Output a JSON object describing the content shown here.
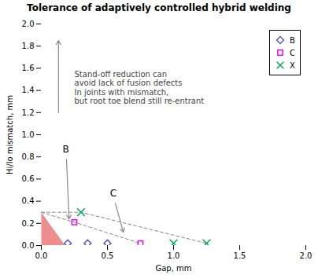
{
  "chart_data": {
    "type": "scatter",
    "title": "Tolerance of adaptively controlled hybrid welding",
    "x_label": "Gap, mm",
    "y_label": "Hi/lo mismatch, mm",
    "xlim": [
      0,
      2
    ],
    "ylim": [
      0,
      2
    ],
    "xticks": [
      {
        "value": 0,
        "label": "0.0"
      },
      0.5,
      {
        "value": 1,
        "label": "1.0"
      },
      1.5,
      {
        "value": 2,
        "label": "2.0"
      }
    ],
    "yticks": [
      {
        "value": 0,
        "label": "0.0"
      },
      0.2,
      0.4,
      0.6,
      0.8,
      {
        "value": 1.0,
        "label": "1.0"
      },
      1.2,
      1.4,
      1.6,
      1.8,
      {
        "value": 2.0,
        "label": "2.0"
      }
    ],
    "grid": false,
    "legend": "upper right",
    "series": [
      {
        "name": "B",
        "color": "#5555cc",
        "marker": "diamond",
        "x": [
          0.2,
          0.35,
          0.5
        ],
        "y": [
          0.02,
          0.02,
          0.02
        ]
      },
      {
        "name": "C",
        "color": "#ff00ff",
        "marker": "square",
        "x": [
          0.25,
          0.75
        ],
        "y": [
          0.21,
          0.02
        ]
      },
      {
        "name": "X",
        "color": "#00aa55",
        "marker": "x",
        "x": [
          0.3,
          1.0,
          1.25
        ],
        "y": [
          0.3,
          0.02,
          0.02
        ]
      }
    ],
    "polygons": [
      {
        "points": [
          [
            0,
            0
          ],
          [
            0.18,
            0
          ],
          [
            0,
            0.3
          ]
        ],
        "color": "#e87070"
      }
    ],
    "lines": [
      {
        "x": [
          0,
          0.25,
          0.75
        ],
        "y": [
          0.3,
          0.21,
          0.02
        ],
        "color": "#888888",
        "line_style": "dashed"
      },
      {
        "x": [
          0,
          0.3,
          1.25
        ],
        "y": [
          0.3,
          0.3,
          0.02
        ],
        "color": "#888888",
        "line_style": "dashed"
      }
    ],
    "annotations": [
      {
        "text": "Stand-off reduction can\navoid lack of fusion defects\nIn joints with mismatch,\nbut root toe blend still re-entrant",
        "x": 0.25,
        "y": 1.58,
        "color": "#444444"
      },
      {
        "text": "B",
        "x": 0.16,
        "y": 0.84,
        "color": "#000000"
      },
      {
        "text": "C",
        "x": 0.52,
        "y": 0.44,
        "color": "#000000"
      }
    ],
    "arrows": [
      {
        "x1": 0.13,
        "y1": 1.2,
        "x2": 0.13,
        "y2": 1.85,
        "color": "#888888"
      },
      {
        "x1": 0.19,
        "y1": 0.78,
        "x2": 0.21,
        "y2": 0.24,
        "color": "#888888"
      },
      {
        "x1": 0.56,
        "y1": 0.38,
        "x2": 0.62,
        "y2": 0.12,
        "color": "#888888"
      }
    ]
  }
}
